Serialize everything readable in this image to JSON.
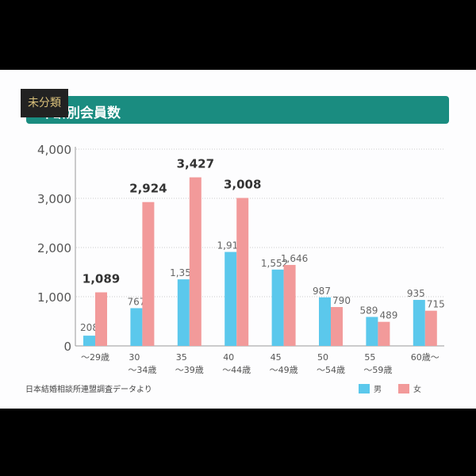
{
  "tag": "未分類",
  "title": "年齢別会員数",
  "source": "日本結婚相談所連盟調査データより",
  "chart_data": {
    "type": "bar",
    "title": "年齢別会員数",
    "categories": [
      "〜29歳",
      "30\n〜34歳",
      "35\n〜39歳",
      "40\n〜44歳",
      "45\n〜49歳",
      "50\n〜54歳",
      "55\n〜59歳",
      "60歳〜"
    ],
    "series": [
      {
        "name": "男",
        "color": "#5bc8ec",
        "values": [
          208,
          767,
          1353,
          1910,
          1552,
          987,
          589,
          935
        ]
      },
      {
        "name": "女",
        "color": "#f29a9a",
        "values": [
          1089,
          2924,
          3427,
          3008,
          1646,
          790,
          489,
          715
        ]
      }
    ],
    "yticks": [
      "0",
      "1,000",
      "2,000",
      "3,000",
      "4,000"
    ],
    "ylim": [
      0,
      4000
    ],
    "grid": true,
    "legend": "bottom-right"
  }
}
